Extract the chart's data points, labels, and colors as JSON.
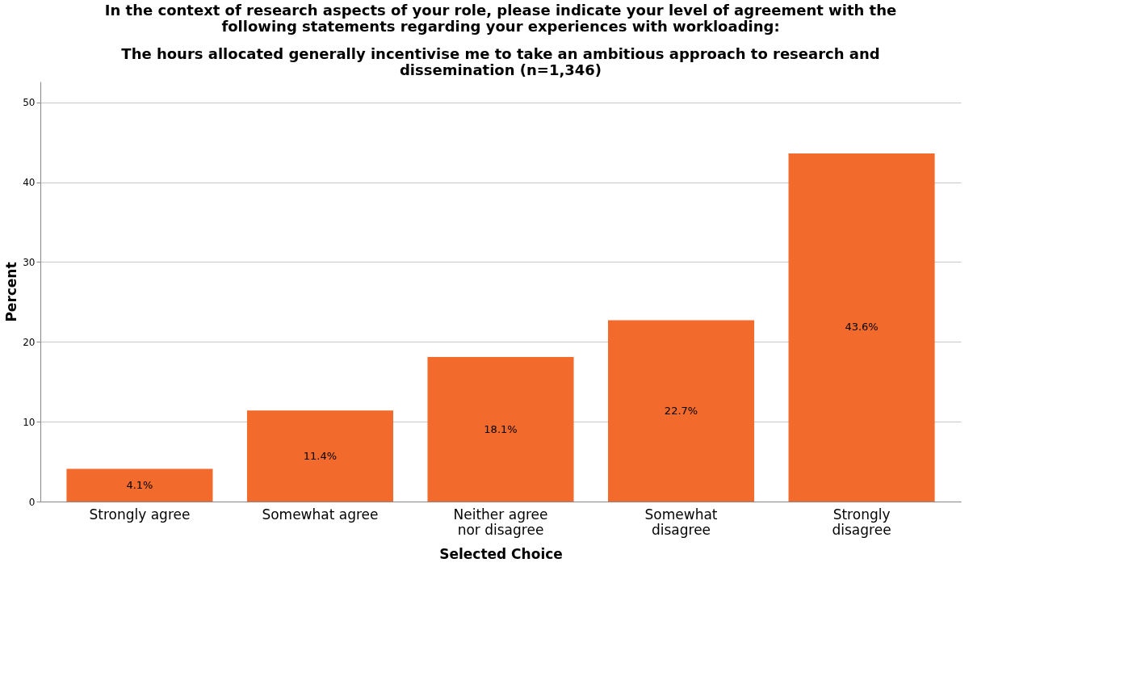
{
  "chart_data": {
    "type": "bar",
    "title": "In the context of research aspects of your role, please indicate your level of agreement with the\nfollowing statements regarding your experiences with workloading:",
    "subtitle": "The hours allocated generally incentivise me to take an ambitious approach to research and\ndissemination (n=1,346)",
    "xlabel": "Selected Choice",
    "ylabel": "Percent",
    "categories": [
      "Strongly agree",
      "Somewhat agree",
      "Neither agree nor disagree",
      "Somewhat disagree",
      "Strongly disagree"
    ],
    "values": [
      4.1,
      11.4,
      18.1,
      22.7,
      43.6
    ],
    "value_labels": [
      "4.1%",
      "11.4%",
      "18.1%",
      "22.7%",
      "43.6%"
    ],
    "color": "#f26a2c",
    "ylim": [
      0,
      52.6
    ],
    "yticks": [
      0,
      10,
      20,
      30,
      40,
      50
    ],
    "grid": "y"
  }
}
